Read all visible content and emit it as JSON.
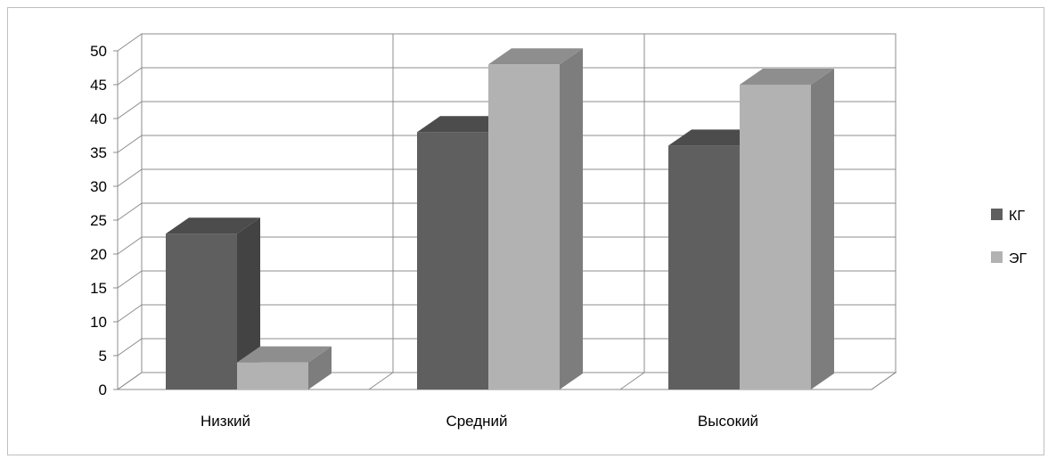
{
  "chart_data": {
    "type": "bar",
    "categories": [
      "Низкий",
      "Средний",
      "Высокий"
    ],
    "series": [
      {
        "name": "КГ",
        "values": [
          23,
          38,
          36
        ],
        "color": "#5f5f5f"
      },
      {
        "name": "ЭГ",
        "values": [
          4,
          48,
          45
        ],
        "color": "#b2b2b2"
      }
    ],
    "ylim": [
      0,
      50
    ],
    "yticks": [
      "0",
      "5",
      "10",
      "15",
      "20",
      "25",
      "30",
      "35",
      "40",
      "45",
      "50"
    ],
    "grid": true,
    "legend_position": "right",
    "style": "3d-clustered-column"
  }
}
